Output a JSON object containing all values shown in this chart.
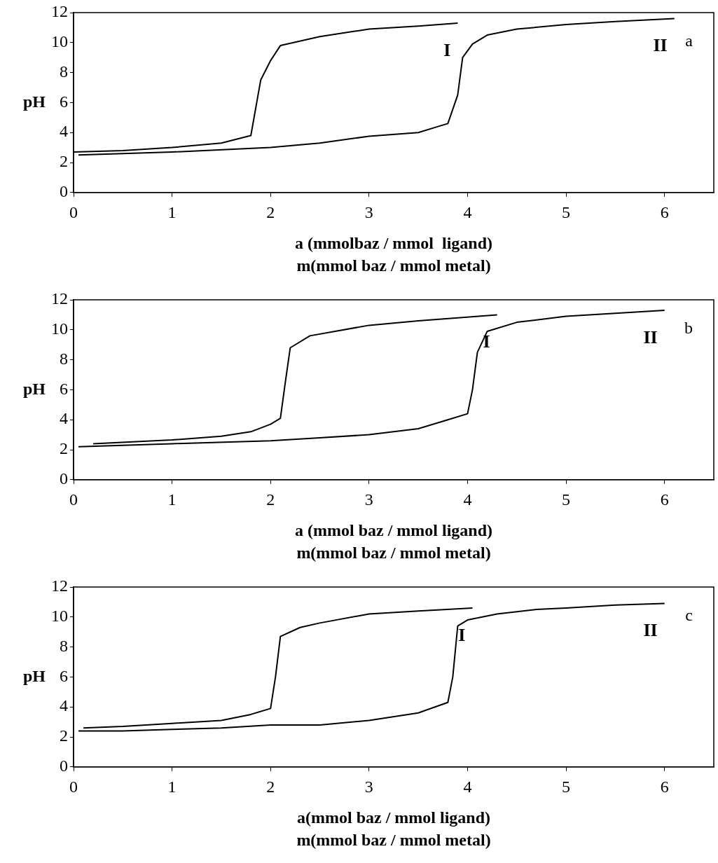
{
  "chart_data": [
    {
      "type": "line",
      "xlabel": "a (mmolbaz / mmol  ligand)\nm(mmol baz / mmol metal)",
      "ylabel": "pH",
      "xlim": [
        0,
        6.5
      ],
      "xticks": [
        0,
        1,
        2,
        3,
        4,
        5,
        6
      ],
      "ylim": [
        0,
        12
      ],
      "yticks": [
        0,
        2,
        4,
        6,
        8,
        10,
        12
      ],
      "grid": false,
      "legend": false,
      "marker": "none",
      "annotations": [
        "a"
      ],
      "series": [
        {
          "name": "I",
          "color": "#000000",
          "x": [
            0.0,
            0.5,
            1.0,
            1.5,
            1.8,
            1.9,
            2.0,
            2.1,
            2.5,
            3.0,
            3.5,
            3.9
          ],
          "values": [
            2.7,
            2.8,
            3.0,
            3.3,
            3.8,
            7.5,
            8.8,
            9.8,
            10.4,
            10.9,
            11.1,
            11.3
          ]
        },
        {
          "name": "II",
          "color": "#000000",
          "x": [
            0.05,
            1.0,
            2.0,
            2.5,
            3.0,
            3.5,
            3.7,
            3.8,
            3.9,
            3.95,
            4.05,
            4.2,
            4.5,
            5.0,
            5.5,
            6.1
          ],
          "values": [
            2.5,
            2.7,
            3.0,
            3.3,
            3.75,
            4.0,
            4.4,
            4.6,
            6.5,
            9.0,
            9.9,
            10.5,
            10.9,
            11.2,
            11.4,
            11.6
          ]
        }
      ]
    },
    {
      "type": "line",
      "xlabel": "a (mmol baz / mmol ligand)\nm(mmol baz / mmol metal)",
      "ylabel": "pH",
      "xlim": [
        0,
        6.5
      ],
      "xticks": [
        0,
        1,
        2,
        3,
        4,
        5,
        6
      ],
      "ylim": [
        0,
        12
      ],
      "yticks": [
        0,
        2,
        4,
        6,
        8,
        10,
        12
      ],
      "grid": false,
      "legend": false,
      "marker": "none",
      "annotations": [
        "b"
      ],
      "series": [
        {
          "name": "I",
          "color": "#000000",
          "x": [
            0.2,
            1.0,
            1.5,
            1.8,
            2.0,
            2.1,
            2.15,
            2.2,
            2.4,
            3.0,
            3.5,
            4.3
          ],
          "values": [
            2.4,
            2.65,
            2.9,
            3.2,
            3.7,
            4.1,
            6.5,
            8.8,
            9.6,
            10.3,
            10.6,
            11.0
          ]
        },
        {
          "name": "II",
          "color": "#000000",
          "x": [
            0.05,
            1.0,
            2.0,
            2.5,
            3.0,
            3.5,
            3.8,
            4.0,
            4.05,
            4.1,
            4.2,
            4.5,
            5.0,
            5.5,
            6.0
          ],
          "values": [
            2.2,
            2.4,
            2.6,
            2.8,
            3.0,
            3.4,
            4.0,
            4.4,
            6.0,
            8.5,
            9.9,
            10.5,
            10.9,
            11.1,
            11.3
          ]
        }
      ]
    },
    {
      "type": "line",
      "xlabel": "a(mmol baz / mmol ligand)\nm(mmol baz / mmol metal)",
      "ylabel": "pH",
      "xlim": [
        0,
        6.5
      ],
      "xticks": [
        0,
        1,
        2,
        3,
        4,
        5,
        6
      ],
      "ylim": [
        0,
        12
      ],
      "yticks": [
        0,
        2,
        4,
        6,
        8,
        10,
        12
      ],
      "grid": false,
      "legend": false,
      "marker": "none",
      "annotations": [
        "c"
      ],
      "series": [
        {
          "name": "I",
          "color": "#000000",
          "x": [
            0.1,
            0.5,
            1.0,
            1.5,
            1.8,
            2.0,
            2.05,
            2.1,
            2.3,
            2.5,
            3.0,
            3.5,
            4.05
          ],
          "values": [
            2.6,
            2.7,
            2.9,
            3.1,
            3.5,
            3.9,
            6.0,
            8.7,
            9.3,
            9.6,
            10.2,
            10.4,
            10.6
          ]
        },
        {
          "name": "II",
          "color": "#000000",
          "x": [
            0.05,
            0.5,
            1.0,
            1.5,
            2.0,
            2.5,
            3.0,
            3.5,
            3.8,
            3.85,
            3.9,
            4.0,
            4.3,
            4.7,
            5.0,
            5.5,
            6.0
          ],
          "values": [
            2.4,
            2.4,
            2.5,
            2.6,
            2.8,
            2.8,
            3.1,
            3.6,
            4.3,
            6.0,
            9.4,
            9.8,
            10.2,
            10.5,
            10.6,
            10.8,
            10.9
          ]
        }
      ]
    }
  ]
}
